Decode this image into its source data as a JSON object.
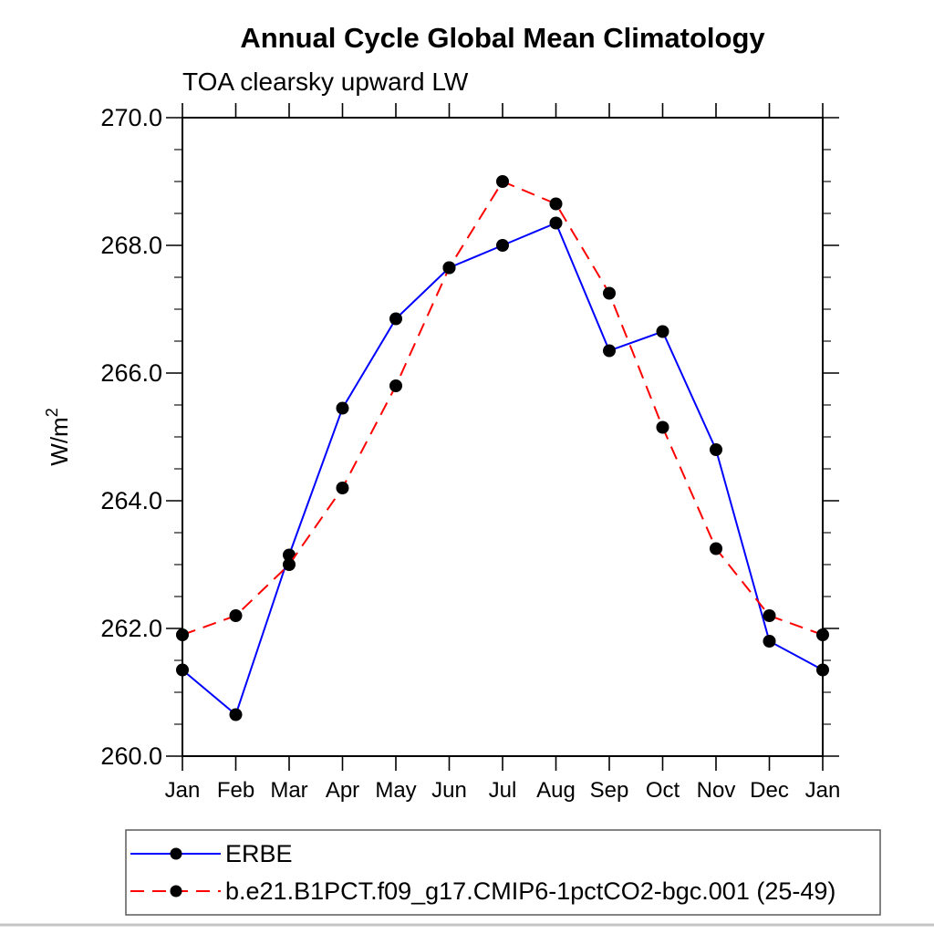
{
  "page": {
    "title": "Annual Cycle Global Mean Climatology",
    "subtitle": "TOA clearsky upward LW"
  },
  "chart_data": {
    "type": "line",
    "title": "Annual Cycle Global Mean Climatology",
    "subtitle": "TOA clearsky upward LW",
    "ylabel": "W/m²",
    "ylabel_base": "W/m",
    "ylabel_exponent": "2",
    "categories": [
      "Jan",
      "Feb",
      "Mar",
      "Apr",
      "May",
      "Jun",
      "Jul",
      "Aug",
      "Sep",
      "Oct",
      "Nov",
      "Dec",
      "Jan"
    ],
    "series": [
      {
        "name": "ERBE",
        "color": "#0000ff",
        "line_style": "solid",
        "marker": "filled-circle",
        "marker_color": "#000000",
        "values": [
          261.35,
          260.65,
          263.15,
          265.45,
          266.85,
          267.65,
          268.0,
          268.35,
          266.35,
          266.65,
          264.8,
          261.8,
          261.35
        ]
      },
      {
        "name": "b.e21.B1PCT.f09_g17.CMIP6-1pctCO2-bgc.001 (25-49)",
        "color": "#ff0000",
        "line_style": "dashed",
        "marker": "filled-circle",
        "marker_color": "#000000",
        "values": [
          261.9,
          262.2,
          263.0,
          264.2,
          265.8,
          267.65,
          269.0,
          268.65,
          267.25,
          265.15,
          263.25,
          262.2,
          261.9
        ]
      }
    ],
    "ylim": [
      260.0,
      270.0
    ],
    "ytick_interval": 2.0,
    "yminor_interval": 0.5,
    "ytick_labels": [
      "260.0",
      "262.0",
      "264.0",
      "266.0",
      "268.0",
      "270.0"
    ],
    "grid": false,
    "axis_color": "#000000",
    "legend_position": "bottom-left-box"
  }
}
